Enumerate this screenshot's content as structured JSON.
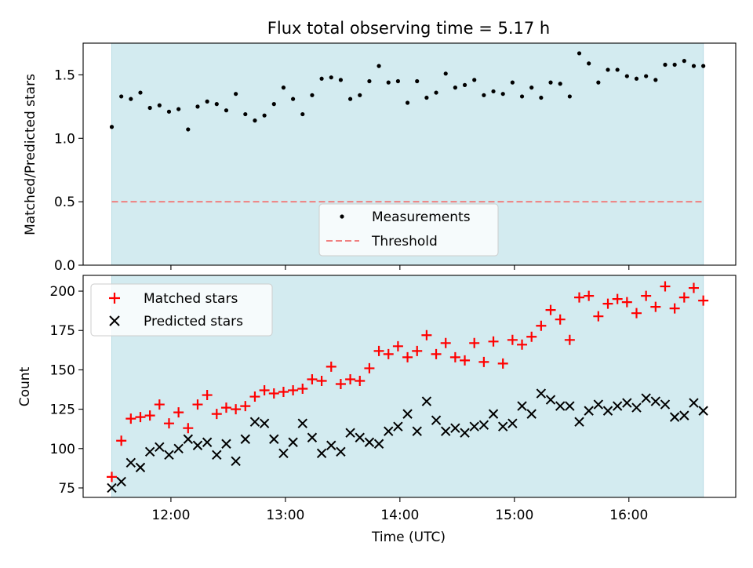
{
  "chart_data": [
    {
      "type": "scatter",
      "panel": "top",
      "title": "Flux total observing time = 5.17 h",
      "ylabel": "Matched/Predicted stars",
      "ylim": [
        0,
        1.75
      ],
      "yticks": [
        0.0,
        0.5,
        1.0,
        1.5
      ],
      "ytick_labels": [
        "0.0",
        "0.5",
        "1.0",
        "1.5"
      ],
      "legend": {
        "placement": "lower-center",
        "entries": [
          "Measurements",
          "Threshold"
        ]
      },
      "threshold": 0.5,
      "ratio": [
        1.09,
        1.33,
        1.31,
        1.36,
        1.24,
        1.26,
        1.21,
        1.23,
        1.07,
        1.25,
        1.29,
        1.27,
        1.22,
        1.35,
        1.19,
        1.14,
        1.18,
        1.27,
        1.4,
        1.31,
        1.19,
        1.34,
        1.47,
        1.48,
        1.46,
        1.31,
        1.34,
        1.45,
        1.57,
        1.44,
        1.45,
        1.28,
        1.45,
        1.32,
        1.36,
        1.51,
        1.4,
        1.42,
        1.46,
        1.34,
        1.37,
        1.35,
        1.44,
        1.33,
        1.4,
        1.32,
        1.44,
        1.43,
        1.33,
        1.67,
        1.59,
        1.44,
        1.54,
        1.54,
        1.49,
        1.47,
        1.49,
        1.46,
        1.58,
        1.58,
        1.61,
        1.57,
        1.57
      ]
    },
    {
      "type": "scatter",
      "panel": "bottom",
      "xlabel": "Time (UTC)",
      "ylabel": "Count",
      "xlim": [
        "11:14",
        "16:56"
      ],
      "ylim": [
        69,
        210
      ],
      "yticks": [
        75,
        100,
        125,
        150,
        175,
        200
      ],
      "ytick_labels": [
        "75",
        "100",
        "125",
        "150",
        "175",
        "200"
      ],
      "xticks": [
        "12:00",
        "13:00",
        "14:00",
        "15:00",
        "16:00"
      ],
      "xtick_labels": [
        "12:00",
        "13:00",
        "14:00",
        "15:00",
        "16:00"
      ],
      "observing_window": [
        "11:29",
        "16:39"
      ],
      "legend": {
        "placement": "upper-left",
        "entries": [
          "Matched stars",
          "Predicted stars"
        ]
      },
      "x": [
        "11:29",
        "11:34",
        "11:39",
        "11:44",
        "11:49",
        "11:54",
        "11:59",
        "12:04",
        "12:09",
        "12:14",
        "12:19",
        "12:24",
        "12:29",
        "12:34",
        "12:39",
        "12:44",
        "12:49",
        "12:54",
        "12:59",
        "13:04",
        "13:09",
        "13:14",
        "13:19",
        "13:24",
        "13:29",
        "13:34",
        "13:39",
        "13:44",
        "13:49",
        "13:54",
        "13:59",
        "14:04",
        "14:09",
        "14:14",
        "14:19",
        "14:24",
        "14:29",
        "14:34",
        "14:39",
        "14:44",
        "14:49",
        "14:54",
        "14:59",
        "15:04",
        "15:09",
        "15:14",
        "15:19",
        "15:24",
        "15:29",
        "15:34",
        "15:39",
        "15:44",
        "15:49",
        "15:54",
        "15:59",
        "16:04",
        "16:09",
        "16:14",
        "16:19",
        "16:24",
        "16:29",
        "16:34",
        "16:39"
      ],
      "series": [
        {
          "name": "Matched stars",
          "values": [
            82,
            105,
            119,
            120,
            121,
            128,
            116,
            123,
            113,
            128,
            134,
            122,
            126,
            125,
            127,
            133,
            137,
            135,
            136,
            137,
            138,
            144,
            143,
            152,
            141,
            144,
            143,
            151,
            162,
            160,
            165,
            158,
            162,
            172,
            160,
            167,
            158,
            156,
            167,
            155,
            168,
            154,
            169,
            166,
            171,
            178,
            188,
            182,
            169,
            196,
            197,
            184,
            192,
            195,
            193,
            186,
            197,
            190,
            203,
            189,
            196,
            202,
            194
          ]
        },
        {
          "name": "Predicted stars",
          "values": [
            75,
            79,
            91,
            88,
            98,
            101,
            96,
            100,
            106,
            102,
            104,
            96,
            103,
            92,
            106,
            117,
            116,
            106,
            97,
            104,
            116,
            107,
            97,
            102,
            98,
            110,
            107,
            104,
            103,
            111,
            114,
            122,
            111,
            130,
            118,
            111,
            113,
            110,
            114,
            115,
            122,
            114,
            116,
            127,
            122,
            135,
            131,
            127,
            127,
            117,
            124,
            128,
            124,
            127,
            129,
            126,
            132,
            130,
            128,
            120,
            121,
            129,
            124
          ]
        }
      ]
    }
  ],
  "colors": {
    "window": "#d3ebf0",
    "window_edge": "#b8dbe4",
    "matched": "#ff0000",
    "predicted": "#000000",
    "threshold": "#f08080",
    "measurement": "#000000"
  }
}
